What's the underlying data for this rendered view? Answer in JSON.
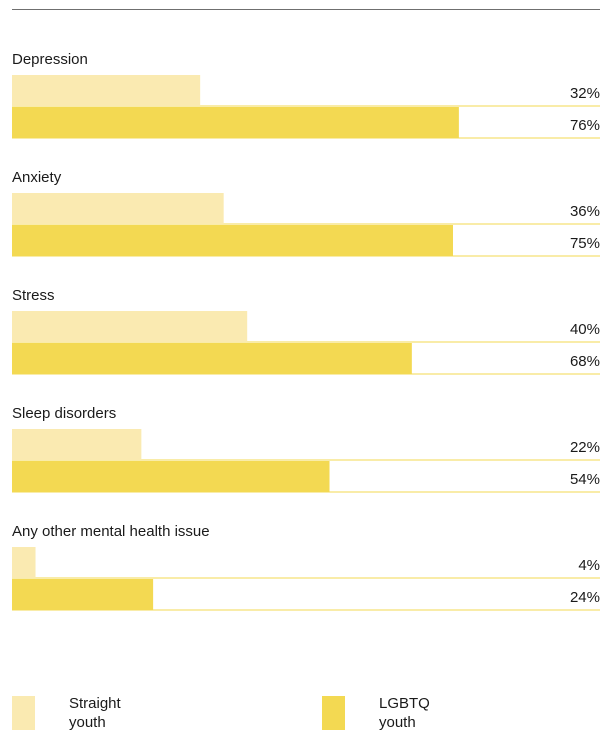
{
  "chart_data": {
    "type": "bar",
    "orientation": "horizontal",
    "categories": [
      "Depression",
      "Anxiety",
      "Stress",
      "Sleep disorders",
      "Any other mental health issue"
    ],
    "series": [
      {
        "name": "Straight youth",
        "values": [
          32,
          36,
          40,
          22,
          4
        ],
        "color": "#faeab1"
      },
      {
        "name": "LGBTQ youth",
        "values": [
          76,
          75,
          68,
          54,
          24
        ],
        "color": "#f3d952"
      }
    ],
    "value_suffix": "%",
    "xlim": [
      0,
      100
    ],
    "grid": false,
    "legend_position": "bottom"
  },
  "legend": {
    "straight_line1": "Straight",
    "straight_line2": "youth",
    "lgbtq_line1": "LGBTQ",
    "lgbtq_line2": "youth"
  },
  "colors": {
    "rule": "#6f6f6f",
    "divider": "#f3d952"
  }
}
